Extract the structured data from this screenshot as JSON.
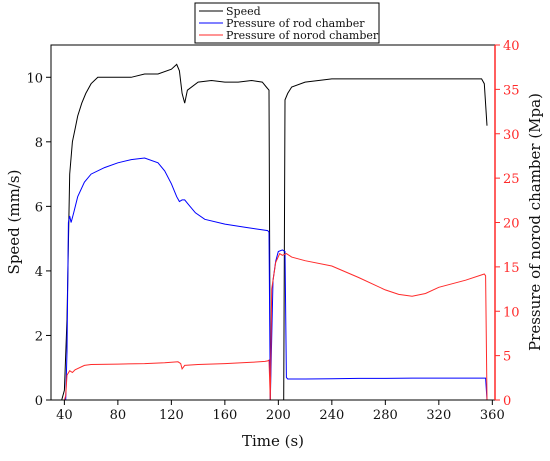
{
  "chart_data": {
    "type": "line",
    "xlabel": "Time (s)",
    "ylabel_left": "Speed (mm/s)",
    "ylabel_right": "Pressure of norod chamber (Mpa)",
    "xlim": [
      30,
      362
    ],
    "ylim_left": [
      0,
      11
    ],
    "ylim_right": [
      0,
      40
    ],
    "x_ticks": [
      40,
      80,
      120,
      160,
      200,
      240,
      280,
      320,
      360
    ],
    "y_ticks_left": [
      0,
      2,
      4,
      6,
      8,
      10
    ],
    "y_ticks_right": [
      0,
      5,
      10,
      15,
      20,
      25,
      30,
      35,
      40
    ],
    "legend_position": "top-center",
    "grid": false,
    "right_axis_color": "#ff2a2a",
    "series": [
      {
        "name": "Speed",
        "axis": "left",
        "color": "#000000",
        "points": [
          [
            30,
            0
          ],
          [
            38,
            0
          ],
          [
            40,
            0.3
          ],
          [
            42,
            2.5
          ],
          [
            44,
            7.0
          ],
          [
            46,
            8.0
          ],
          [
            48,
            8.4
          ],
          [
            50,
            8.8
          ],
          [
            53,
            9.2
          ],
          [
            56,
            9.5
          ],
          [
            60,
            9.8
          ],
          [
            65,
            10.0
          ],
          [
            70,
            10.0
          ],
          [
            80,
            10.0
          ],
          [
            90,
            10.0
          ],
          [
            100,
            10.1
          ],
          [
            110,
            10.1
          ],
          [
            120,
            10.25
          ],
          [
            124,
            10.4
          ],
          [
            126,
            10.2
          ],
          [
            128,
            9.5
          ],
          [
            130,
            9.2
          ],
          [
            132,
            9.6
          ],
          [
            140,
            9.85
          ],
          [
            150,
            9.9
          ],
          [
            160,
            9.85
          ],
          [
            170,
            9.85
          ],
          [
            180,
            9.9
          ],
          [
            188,
            9.85
          ],
          [
            191,
            9.7
          ],
          [
            193,
            9.6
          ],
          [
            194,
            0
          ],
          [
            204,
            0
          ],
          [
            205,
            9.3
          ],
          [
            207,
            9.5
          ],
          [
            210,
            9.7
          ],
          [
            220,
            9.85
          ],
          [
            230,
            9.9
          ],
          [
            240,
            9.95
          ],
          [
            260,
            9.95
          ],
          [
            280,
            9.95
          ],
          [
            300,
            9.95
          ],
          [
            320,
            9.95
          ],
          [
            340,
            9.95
          ],
          [
            352,
            9.95
          ],
          [
            354,
            9.8
          ],
          [
            356,
            8.5
          ]
        ]
      },
      {
        "name": "Pressure of rod chamber",
        "axis": "left",
        "color": "#0000ff",
        "points": [
          [
            30,
            0
          ],
          [
            41,
            0
          ],
          [
            42,
            1.5
          ],
          [
            43,
            5.5
          ],
          [
            44,
            5.7
          ],
          [
            45,
            5.5
          ],
          [
            47,
            5.8
          ],
          [
            50,
            6.3
          ],
          [
            55,
            6.75
          ],
          [
            60,
            7.0
          ],
          [
            70,
            7.2
          ],
          [
            80,
            7.35
          ],
          [
            90,
            7.45
          ],
          [
            100,
            7.5
          ],
          [
            110,
            7.35
          ],
          [
            115,
            7.1
          ],
          [
            120,
            6.7
          ],
          [
            124,
            6.3
          ],
          [
            126,
            6.15
          ],
          [
            128,
            6.2
          ],
          [
            130,
            6.2
          ],
          [
            133,
            6.05
          ],
          [
            138,
            5.8
          ],
          [
            145,
            5.6
          ],
          [
            160,
            5.45
          ],
          [
            175,
            5.35
          ],
          [
            192,
            5.25
          ],
          [
            193,
            5.2
          ],
          [
            194,
            0
          ],
          [
            196,
            3.7
          ],
          [
            198,
            4.3
          ],
          [
            200,
            4.6
          ],
          [
            203,
            4.65
          ],
          [
            205,
            4.6
          ],
          [
            206,
            0.7
          ],
          [
            207,
            0.65
          ],
          [
            220,
            0.65
          ],
          [
            240,
            0.66
          ],
          [
            260,
            0.67
          ],
          [
            280,
            0.67
          ],
          [
            300,
            0.68
          ],
          [
            320,
            0.68
          ],
          [
            340,
            0.68
          ],
          [
            355,
            0.68
          ],
          [
            356,
            0
          ]
        ]
      },
      {
        "name": "Pressure of norod chamber",
        "axis": "right",
        "color": "#ff2a2a",
        "points": [
          [
            30,
            0
          ],
          [
            40,
            0
          ],
          [
            41,
            0.5
          ],
          [
            42,
            2.8
          ],
          [
            44,
            3.3
          ],
          [
            46,
            3.1
          ],
          [
            48,
            3.4
          ],
          [
            55,
            3.9
          ],
          [
            60,
            4.0
          ],
          [
            80,
            4.05
          ],
          [
            100,
            4.1
          ],
          [
            115,
            4.2
          ],
          [
            125,
            4.3
          ],
          [
            127,
            4.1
          ],
          [
            128,
            3.5
          ],
          [
            130,
            3.9
          ],
          [
            140,
            4.0
          ],
          [
            160,
            4.1
          ],
          [
            180,
            4.25
          ],
          [
            190,
            4.35
          ],
          [
            192,
            4.4
          ],
          [
            193,
            4.5
          ],
          [
            194,
            0
          ],
          [
            195,
            12.5
          ],
          [
            198,
            15.5
          ],
          [
            201,
            16.5
          ],
          [
            203,
            16.3
          ],
          [
            206,
            16.5
          ],
          [
            210,
            16.1
          ],
          [
            220,
            15.7
          ],
          [
            240,
            15.1
          ],
          [
            260,
            13.8
          ],
          [
            280,
            12.4
          ],
          [
            290,
            11.9
          ],
          [
            300,
            11.7
          ],
          [
            310,
            12.0
          ],
          [
            320,
            12.7
          ],
          [
            340,
            13.5
          ],
          [
            354,
            14.2
          ],
          [
            355,
            14.0
          ],
          [
            356,
            0
          ]
        ]
      }
    ]
  }
}
